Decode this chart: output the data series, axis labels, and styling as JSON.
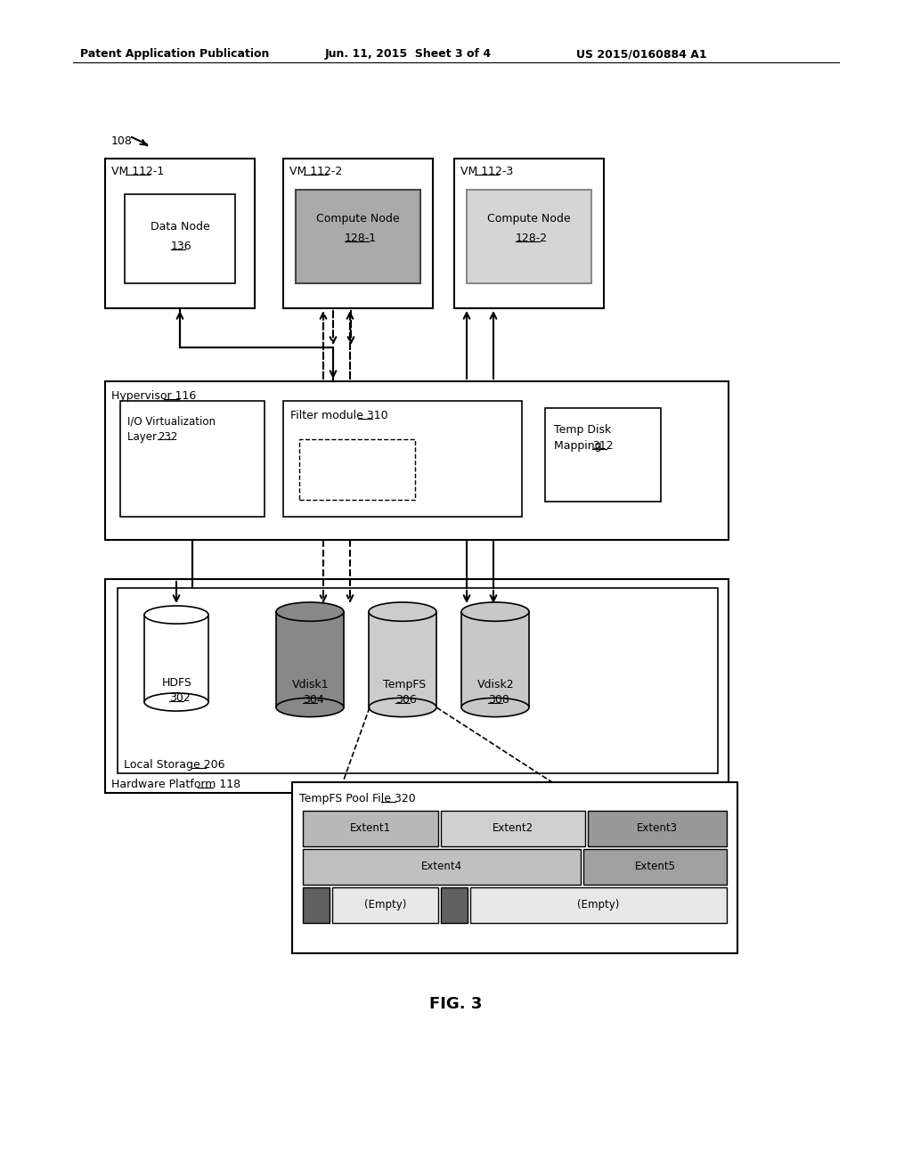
{
  "bg_color": "#ffffff",
  "header_left": "Patent Application Publication",
  "header_mid": "Jun. 11, 2015  Sheet 3 of 4",
  "header_right": "US 2015/0160884 A1",
  "fig_label": "FIG. 3",
  "vm1_label": "VM ",
  "vm1_num": "112-1",
  "vm2_label": "VM ",
  "vm2_num": "112-2",
  "vm3_label": "VM ",
  "vm3_num": "112-3",
  "datanode_line1": "Data Node",
  "datanode_num": "136",
  "compute1_line1": "Compute Node",
  "compute1_num": "128-1",
  "compute2_line1": "Compute Node",
  "compute2_num": "128-2",
  "hypervisor_label": "Hypervisor ",
  "hypervisor_num": "116",
  "io_virt_line1": "I/O Virtualization",
  "io_virt_line2": "Layer ",
  "io_virt_num": "232",
  "filter_label": "Filter module ",
  "filter_num": "310",
  "tempdisk_line1": "Temp Disk",
  "tempdisk_line2": "Mapping ",
  "tempdisk_num": "312",
  "hardware_label": "Hardware Platform ",
  "hardware_num": "118",
  "local_storage_label": "Local Storage ",
  "local_storage_num": "206",
  "hdfs_line1": "HDFS",
  "hdfs_num": "302",
  "vdisk1_label": "Vdisk1",
  "vdisk1_num": "304",
  "tempfs_label": "TempFS",
  "tempfs_num": "306",
  "vdisk2_label": "Vdisk2",
  "vdisk2_num": "308",
  "pool_label": "TempFS Pool File ",
  "pool_num": "320",
  "extent1": "Extent1",
  "extent2": "Extent2",
  "extent3": "Extent3",
  "extent4": "Extent4",
  "extent5": "Extent5",
  "empty1": "(Empty)",
  "empty2": "(Empty)",
  "label_108": "108"
}
